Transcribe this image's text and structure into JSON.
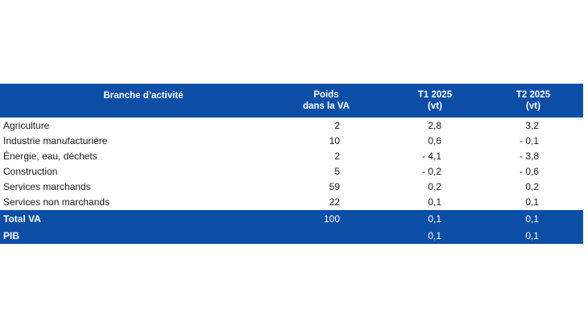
{
  "table": {
    "header": [
      [
        "Branche d’activité"
      ],
      [
        "Poids",
        "dans la VA"
      ],
      [
        "T1 2025",
        "(vt)"
      ],
      [
        "T2 2025",
        "(vt)"
      ]
    ],
    "rows": [
      [
        "Agriculture",
        "2",
        "2,8",
        "3,2"
      ],
      [
        "Industrie manufacturière",
        "10",
        "0,6",
        "- 0,1"
      ],
      [
        "Énergie, eau, déchets",
        "2",
        "- 4,1",
        "- 3,8"
      ],
      [
        "Construction",
        "5",
        "- 0,2",
        "- 0,6"
      ],
      [
        "Services marchands",
        "59",
        "0,2",
        "0,2"
      ],
      [
        "Services non marchands",
        "22",
        "0,1",
        "0,1"
      ]
    ],
    "totals": [
      [
        "Total VA",
        "100",
        "0,1",
        "0,1"
      ],
      [
        "PIB",
        null,
        "0,1",
        "0,1"
      ]
    ]
  }
}
